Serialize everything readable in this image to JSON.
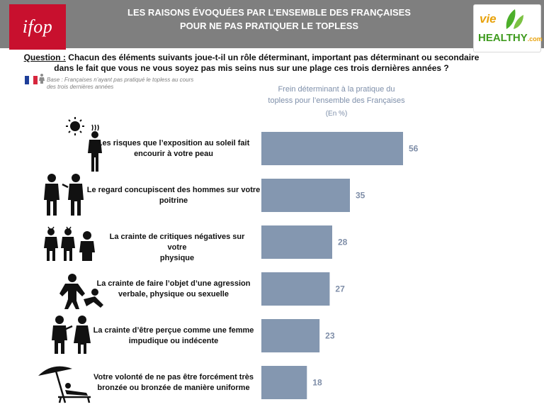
{
  "header": {
    "logo_text": "ifop",
    "title_line1": "LES RAISONS ÉVOQUÉES PAR L’ENSEMBLE DES FRANÇAISES",
    "title_line2": "POUR NE PAS PRATIQUER LE TOPLESS",
    "brand_vie": "vie",
    "brand_healthy": "HEALTHY",
    "brand_com": ".com"
  },
  "question": {
    "label": "Question :",
    "text": "Chacun des éléments suivants joue-t-il un rôle déterminant, important pas déterminant ou secondaire dans le fait que vous ne vous soyez pas mis seins nus sur une plage ces trois dernières années ?"
  },
  "base": {
    "line1": "Base : Françaises n’ayant pas pratiqué le topless au cours",
    "line2": "des trois dernières années"
  },
  "chart_header": {
    "line1": "Frein déterminant à la pratique du",
    "line2": "topless pour l’ensemble des Françaises",
    "unit": "(En %)"
  },
  "colors": {
    "bar": "#8497b0",
    "value": "#7f8ea8",
    "header": "#7f7f7f",
    "logo": "#c8102e"
  },
  "chart_data": {
    "type": "bar",
    "orientation": "horizontal",
    "title": "Frein déterminant à la pratique du topless pour l’ensemble des Françaises",
    "unit": "(En %)",
    "xlim": [
      0,
      100
    ],
    "categories": [
      "Les risques que l’exposition au soleil fait encourir à votre peau",
      "Le regard concupiscent des hommes sur votre poitrine",
      "La crainte de critiques négatives sur votre physique",
      "La crainte de faire l’objet d’une agression verbale, physique ou sexuelle",
      "La crainte d’être perçue comme une femme impudique ou indécente",
      "Votre volonté de ne pas être forcément très bronzée ou bronzée de manière uniforme"
    ],
    "values": [
      56,
      35,
      28,
      27,
      23,
      18
    ]
  },
  "row_labels": [
    {
      "line1": "Les risques que l’exposition au soleil fait",
      "line2": "encourir à votre peau"
    },
    {
      "line1": "Le regard concupiscent des hommes sur votre",
      "line2": "poitrine"
    },
    {
      "line1": "La crainte de critiques négatives sur votre",
      "line2": "physique"
    },
    {
      "line1": "La crainte de faire l’objet d’une agression",
      "line2": "verbale, physique ou sexuelle"
    },
    {
      "line1": "La crainte d’être perçue comme une femme",
      "line2": "impudique ou indécente"
    },
    {
      "line1": "Votre volonté de ne pas être forcément très",
      "line2": "bronzée ou bronzée de manière uniforme"
    }
  ],
  "icons": [
    "sun-person-icon",
    "men-staring-icon",
    "group-criticism-icon",
    "aggression-icon",
    "people-judging-icon",
    "umbrella-lounger-icon"
  ]
}
